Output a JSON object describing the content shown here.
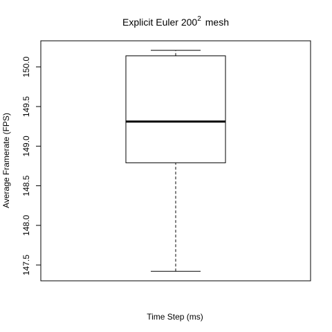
{
  "chart_data": {
    "type": "boxplot",
    "title": "Explicit Euler  200",
    "title_superscript": "2",
    "title_suffix": "mesh",
    "xlabel": "Time Step (ms)",
    "ylabel": "Average Framerate (FPS)",
    "ylim": [
      147.3,
      150.33
    ],
    "yticks": [
      "147.5",
      "148.0",
      "148.5",
      "149.0",
      "149.5",
      "150.0"
    ],
    "grid": false,
    "box": {
      "whisker_low": 147.42,
      "q1": 148.79,
      "median": 149.31,
      "q3": 150.14,
      "whisker_high": 150.21
    }
  }
}
